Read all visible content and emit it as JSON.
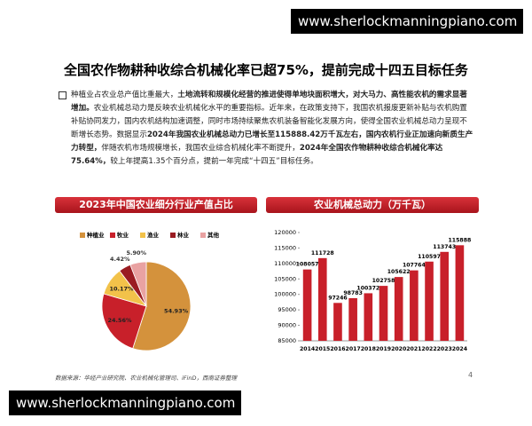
{
  "watermark_top": "www.sherlockmanningpiano.com",
  "header": {
    "title": "全国农作物耕种收综合机械化率已超75%，提前完成十四五目标任务"
  },
  "paragraph": [
    {
      "text": "种植业占农业总产值比重最大，",
      "bold": false
    },
    {
      "text": "土地流转和规模化经营的推进使得单地块面积增大，对大马力、高性能农机的需求显著增加。",
      "bold": true
    },
    {
      "text": "农业机械总动力是反映农业机械化水平的重要指标。近年来，在政策支持下，我国农机报废更新补贴与农机购置补贴协同发力，国内农机结构加速调整，同时市场持续聚焦农机装备智能化发展方向，使得全国农业机械总动力呈现不断增长态势。数据显示",
      "bold": false
    },
    {
      "text": "2024年我国农业机械总动力已增长至115888.42万千瓦左右，国内农机行业正加速向新质生产力转型，",
      "bold": true
    },
    {
      "text": "伴随农机市场规模增长，我国农业综合机械化率不断提升，",
      "bold": false
    },
    {
      "text": "2024年全国农作物耕种收综合机械化率达75.64%，",
      "bold": true
    },
    {
      "text": "较上年提高1.35个百分点，提前一年完成“十四五”目标任务。",
      "bold": false
    }
  ],
  "chart_data": [
    {
      "type": "pie",
      "title": "2023年中国农业细分行业产值占比",
      "categories": [
        "种植业",
        "牧业",
        "渔业",
        "林业",
        "其他"
      ],
      "values": [
        54.93,
        24.56,
        10.17,
        4.42,
        5.9
      ],
      "value_labels": [
        "54.93%",
        "24.56%",
        "10.17%",
        "4.42%",
        "5.90%"
      ],
      "colors": [
        "#d4923c",
        "#c8202a",
        "#f2c24a",
        "#9a1c22",
        "#e9a2a2"
      ]
    },
    {
      "type": "bar",
      "title": "农业机械总动力（万千瓦）",
      "categories": [
        "2014",
        "2015",
        "2016",
        "2017",
        "2018",
        "2019",
        "2020",
        "2021",
        "2022",
        "2023",
        "2024"
      ],
      "values": [
        108057,
        111728,
        97246,
        98783,
        100372,
        102758,
        105622,
        107764,
        110597,
        113743,
        115888
      ],
      "color": "#c8202a",
      "ylim": [
        85000,
        120000
      ],
      "yticks": [
        85000,
        90000,
        95000,
        100000,
        105000,
        110000,
        115000,
        120000
      ],
      "grid": false
    }
  ],
  "source": "数据来源：华经产业研究院、农业机械化管理司、iFinD，西南证券整理",
  "page_number": "4",
  "watermark_bottom": "www.sherlockmanningpiano.com"
}
